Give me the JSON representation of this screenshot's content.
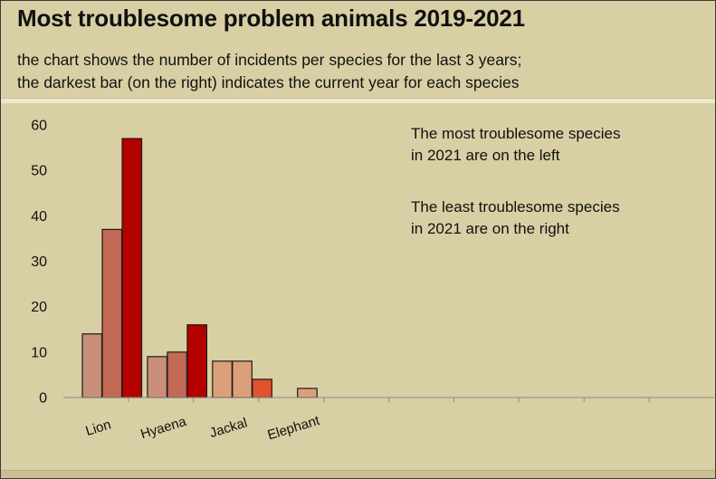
{
  "chart_data": {
    "type": "bar",
    "title": "Most troublesome problem animals 2019-2021",
    "subtitle_lines": [
      "the chart shows the number of incidents per species for the last 3 years;",
      "the darkest bar (on the right) indicates the current year for each species"
    ],
    "categories": [
      "Lion",
      "Hyaena",
      "Jackal",
      "Elephant"
    ],
    "series": [
      {
        "values": [
          14,
          9,
          8,
          0
        ]
      },
      {
        "values": [
          37,
          10,
          8,
          2
        ]
      },
      {
        "values": [
          57,
          16,
          4,
          0
        ]
      }
    ],
    "bar_colors": [
      [
        "#c98f78",
        "#c26a55",
        "#b50000"
      ],
      [
        "#c98f78",
        "#c26a55",
        "#b50000"
      ],
      [
        "#dba078",
        "#dba078",
        "#e0532e"
      ],
      [
        "#dba078",
        "#dba078",
        "#dba078"
      ]
    ],
    "ylim": [
      0,
      60
    ],
    "yticks": [
      0,
      10,
      20,
      30,
      40,
      50,
      60
    ],
    "annotations": [
      [
        "The most troublesome species",
        " in 2021 are on the left"
      ],
      [
        "The least troublesome species",
        " in 2021 are on the right"
      ]
    ],
    "grid": false,
    "legend": "none"
  }
}
